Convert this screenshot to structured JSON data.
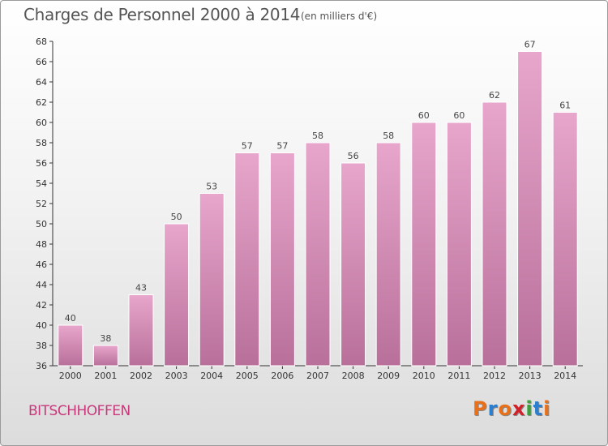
{
  "header": {
    "title": "Charges de Personnel 2000 à 2014",
    "subtitle": "(en milliers d'€)"
  },
  "footer": {
    "commune": "BITSCHHOFFEN",
    "logo_text": "Proxiti"
  },
  "colors": {
    "bar_top": "#e8a6cc",
    "bar_bottom": "#b8709a",
    "commune_text": "#c8387a",
    "logo_letters": [
      "#e8701a",
      "#2a7fd0",
      "#e8701a",
      "#d0202a",
      "#3aa03a",
      "#2a7fd0",
      "#e8701a"
    ]
  },
  "chart_data": {
    "type": "bar",
    "title": "Charges de Personnel 2000 à 2014",
    "subtitle": "(en milliers d'€)",
    "categories": [
      "2000",
      "2001",
      "2002",
      "2003",
      "2004",
      "2005",
      "2006",
      "2007",
      "2008",
      "2009",
      "2010",
      "2011",
      "2012",
      "2013",
      "2014"
    ],
    "values": [
      40,
      38,
      43,
      50,
      53,
      57,
      57,
      58,
      56,
      58,
      60,
      60,
      62,
      67,
      61
    ],
    "ylim": [
      36,
      68
    ],
    "yticks": [
      36,
      38,
      40,
      42,
      44,
      46,
      48,
      50,
      52,
      54,
      56,
      58,
      60,
      62,
      64,
      66,
      68
    ],
    "grid": false,
    "legend": "none"
  }
}
